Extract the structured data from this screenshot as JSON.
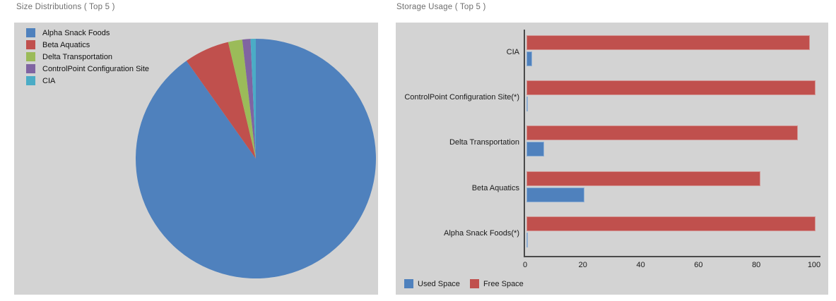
{
  "page": {
    "background": "#ffffff",
    "panel_background": "#d3d3d3",
    "title_color": "#6e6e6e"
  },
  "chart_data": [
    {
      "type": "pie",
      "title": "Size Distributions ( Top 5 )",
      "legend_position": "top-left",
      "start_angle_deg": 0,
      "direction": "clockwise",
      "labels": [
        "Alpha Snack Foods",
        "Beta Aquatics",
        "Delta Transportation",
        "ControlPoint Configuration Site",
        "CIA"
      ],
      "values": [
        90.2,
        6.1,
        1.9,
        1.1,
        0.7
      ],
      "colors": [
        "#4f81bd",
        "#c0504d",
        "#9bbb59",
        "#8064a2",
        "#4bacc6"
      ]
    },
    {
      "type": "bar",
      "orientation": "horizontal",
      "title": "Storage Usage ( Top 5 )",
      "categories": [
        "CIA",
        "ControlPoint Configuration Site(*)",
        "Delta Transportation",
        "Beta Aquatics",
        "Alpha Snack Foods(*)"
      ],
      "series": [
        {
          "name": "Used Space",
          "color": "#4f81bd",
          "border_color": "#8fafd4",
          "values": [
            2,
            0.3,
            6,
            20,
            0.3
          ]
        },
        {
          "name": "Free Space",
          "color": "#c0504d",
          "border_color": "#d39492",
          "values": [
            98,
            100,
            94,
            81,
            100
          ]
        }
      ],
      "xlim": [
        0,
        100
      ],
      "xticks": [
        0,
        20,
        40,
        60,
        80,
        100
      ],
      "grid": false,
      "legend_position": "bottom-left",
      "axis_color": "#4a4a4a",
      "label_color": "#1a1a1a"
    }
  ]
}
